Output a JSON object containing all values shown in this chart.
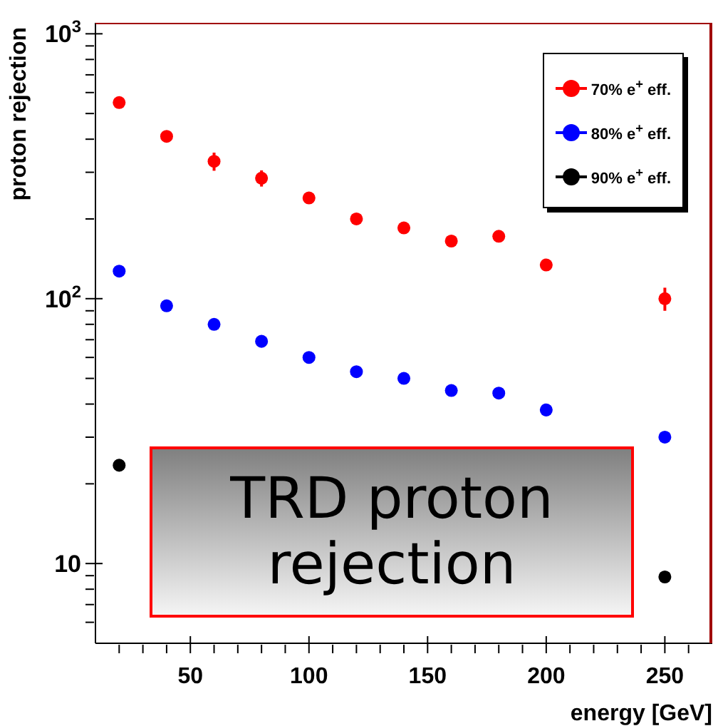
{
  "chart_data": {
    "type": "scatter",
    "xlabel": "energy [GeV]",
    "ylabel": "proton rejection",
    "x": [
      20,
      40,
      60,
      80,
      100,
      120,
      140,
      160,
      180,
      200,
      250
    ],
    "series": [
      {
        "name": "70% e$^{+}$ eff.",
        "color": "#ff0000",
        "values": [
          550,
          410,
          330,
          285,
          240,
          200,
          185,
          165,
          172,
          134,
          100
        ],
        "errors": [
          null,
          null,
          26,
          20,
          null,
          null,
          null,
          null,
          null,
          null,
          10
        ]
      },
      {
        "name": "80% e$^{+}$ eff.",
        "color": "#0000ff",
        "values": [
          127,
          94,
          80,
          69,
          60,
          53,
          50,
          45,
          44,
          38,
          30
        ]
      },
      {
        "name": "90% e$^{+}$ eff.",
        "color": "#000000",
        "x": [
          20,
          250
        ],
        "values": [
          23.5,
          8.9
        ]
      }
    ],
    "log": "y",
    "xlim": [
      10,
      270
    ],
    "ylim": [
      5,
      1100
    ],
    "xticks": [
      {
        "value": 20,
        "label": null
      },
      {
        "value": 30,
        "label": null
      },
      {
        "value": 40,
        "label": null
      },
      50,
      {
        "value": 60,
        "label": null
      },
      {
        "value": 70,
        "label": null
      },
      {
        "value": 80,
        "label": null
      },
      {
        "value": 90,
        "label": null
      },
      100,
      {
        "value": 110,
        "label": null
      },
      {
        "value": 120,
        "label": null
      },
      {
        "value": 130,
        "label": null
      },
      {
        "value": 140,
        "label": null
      },
      150,
      {
        "value": 160,
        "label": null
      },
      {
        "value": 170,
        "label": null
      },
      {
        "value": 180,
        "label": null
      },
      {
        "value": 190,
        "label": null
      },
      200,
      {
        "value": 210,
        "label": null
      },
      {
        "value": 220,
        "label": null
      },
      {
        "value": 230,
        "label": null
      },
      {
        "value": 240,
        "label": null
      },
      250,
      {
        "value": 260,
        "label": null
      }
    ],
    "yticks": [
      {
        "value": 6,
        "label": null
      },
      {
        "value": 7,
        "label": null
      },
      {
        "value": 8,
        "label": null
      },
      {
        "value": 9,
        "label": null
      },
      10,
      {
        "value": 20,
        "label": null
      },
      {
        "value": 30,
        "label": null
      },
      {
        "value": 40,
        "label": null
      },
      {
        "value": 50,
        "label": null
      },
      {
        "value": 60,
        "label": null
      },
      {
        "value": 70,
        "label": null
      },
      {
        "value": 80,
        "label": null
      },
      {
        "value": 90,
        "label": null
      },
      {
        "value": 100,
        "label": "10$^{2}$"
      },
      {
        "value": 200,
        "label": null
      },
      {
        "value": 300,
        "label": null
      },
      {
        "value": 400,
        "label": null
      },
      {
        "value": 500,
        "label": null
      },
      {
        "value": 600,
        "label": null
      },
      {
        "value": 700,
        "label": null
      },
      {
        "value": 800,
        "label": null
      },
      {
        "value": 900,
        "label": null
      },
      {
        "value": 1000,
        "label": "10$^{3}$"
      }
    ],
    "marker": "circle",
    "legend": "top right",
    "grid": false,
    "annotations": [
      "TRD proton rejection"
    ]
  }
}
